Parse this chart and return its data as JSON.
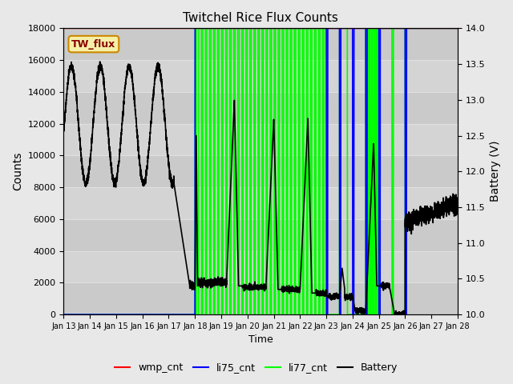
{
  "title": "Twitchel Rice Flux Counts",
  "xlabel": "Time",
  "ylabel_left": "Counts",
  "ylabel_right": "Battery (V)",
  "annotation_text": "TW_flux",
  "xlim_days": [
    0,
    15
  ],
  "ylim_left": [
    0,
    18000
  ],
  "ylim_right": [
    10.0,
    14.0
  ],
  "x_tick_labels": [
    "Jan 13",
    "Jan 14",
    "Jan 15",
    "Jan 16",
    "Jan 17",
    "Jan 18",
    "Jan 19",
    "Jan 20",
    "Jan 21",
    "Jan 22",
    "Jan 23",
    "Jan 24",
    "Jan 25",
    "Jan 26",
    "Jan 27",
    "Jan 28"
  ],
  "x_tick_positions": [
    0,
    1,
    2,
    3,
    4,
    5,
    6,
    7,
    8,
    9,
    10,
    11,
    12,
    13,
    14,
    15
  ],
  "bg_color": "#e8e8e8",
  "plot_bg_color": "#c8c8c8",
  "grid_color": "#e0e0e0",
  "wmp_cnt_color": "red",
  "li75_cnt_color": "blue",
  "li77_cnt_color": "lime",
  "battery_color": "black",
  "linewidth": 1.2
}
